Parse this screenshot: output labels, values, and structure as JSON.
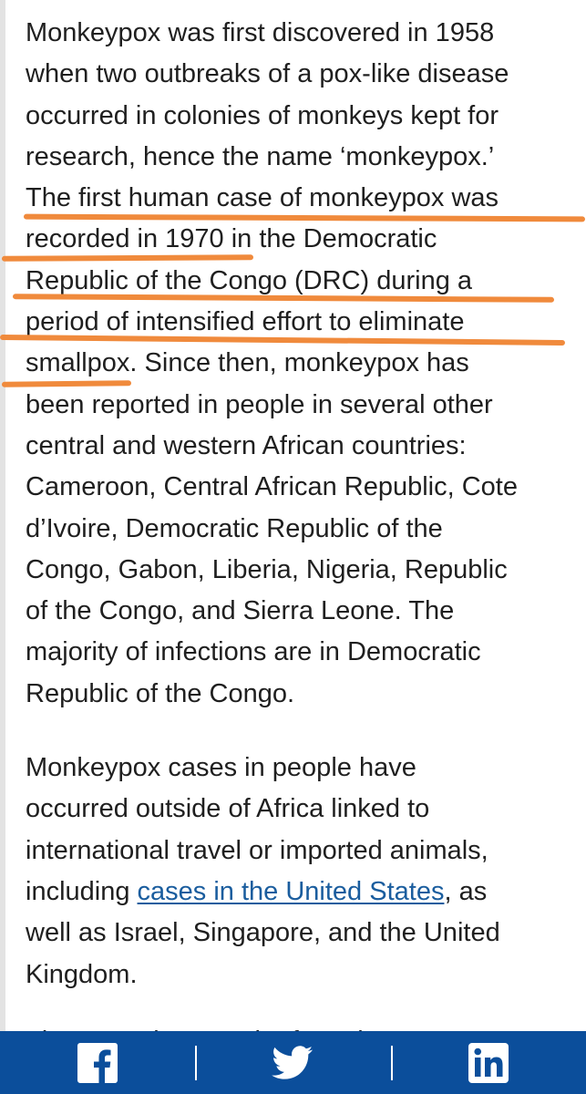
{
  "article": {
    "paragraph1": {
      "lines": [
        "Monkeypox was first discovered in 1958",
        "when two outbreaks of a pox-like disease",
        "occurred in colonies of monkeys kept for",
        "research, hence the name ‘monkeypox.’",
        "The first human case of monkeypox was",
        "recorded in 1970 in the Democratic",
        "Republic of the Congo (DRC) during a",
        "period of intensified effort to eliminate",
        "smallpox. Since then, monkeypox has",
        "been reported in people in several other",
        "central and western African countries:",
        "Cameroon, Central African Republic, Cote",
        "d’Ivoire, Democratic Republic of the",
        "Congo, Gabon, Liberia, Nigeria, Republic",
        "of the Congo, and Sierra Leone. The",
        "majority of infections are in Democratic",
        "Republic of the Congo."
      ]
    },
    "paragraph2": {
      "line1": "Monkeypox cases in people have",
      "line2": "occurred outside of Africa linked to",
      "line3": "international travel or imported animals,",
      "line4_before_link": "including ",
      "link_text": "cases in the United States",
      "line4_after_link": ", as",
      "line5": "well as Israel, Singapore, and the United",
      "line6": "Kingdom."
    },
    "partial_line": "The natural reservoir of monke"
  },
  "highlight": {
    "color": "#f08a3c"
  },
  "share_bar": {
    "background": "#0b4e9b",
    "buttons": [
      {
        "icon": "facebook-icon"
      },
      {
        "icon": "twitter-icon"
      },
      {
        "icon": "linkedin-icon"
      }
    ]
  },
  "colors": {
    "link": "#1a5d9e",
    "text": "#1f1f1f"
  }
}
